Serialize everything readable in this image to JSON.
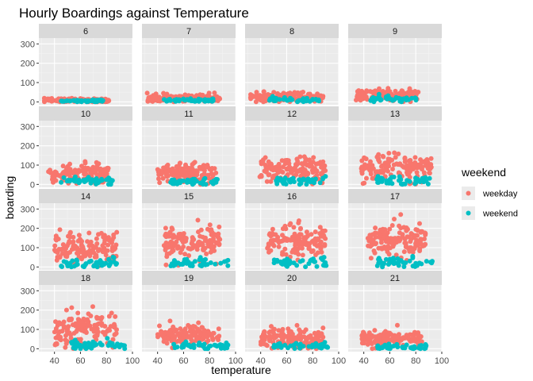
{
  "chart_data": {
    "type": "scatter",
    "title": "Hourly Boardings against Temperature",
    "xlabel": "temperature",
    "ylabel": "boarding",
    "xlim": [
      28,
      100
    ],
    "ylim": [
      -15,
      330
    ],
    "x_ticks": [
      40,
      60,
      80,
      100
    ],
    "x_tick_labels": [
      "40",
      "60",
      "80",
      "100"
    ],
    "y_ticks": [
      0,
      100,
      200,
      300
    ],
    "y_tick_labels": [
      "0",
      "100",
      "200",
      "300"
    ],
    "grid": true,
    "legend": {
      "title": "weekend",
      "position": "right",
      "entries": [
        {
          "label": "weekday",
          "color": "#F8766D"
        },
        {
          "label": "weekend",
          "color": "#00BFC4"
        }
      ]
    },
    "facet_by": "hour",
    "facets": [
      {
        "label": "6",
        "weekday": {
          "x_range": [
            32,
            82
          ],
          "y_center": 8,
          "y_spread": 5
        },
        "weekend": {
          "x_range": [
            45,
            78
          ],
          "y_center": 5,
          "y_spread": 3
        }
      },
      {
        "label": "7",
        "weekday": {
          "x_range": [
            32,
            88
          ],
          "y_center": 18,
          "y_spread": 10
        },
        "weekend": {
          "x_range": [
            45,
            85
          ],
          "y_center": 8,
          "y_spread": 5
        }
      },
      {
        "label": "8",
        "weekday": {
          "x_range": [
            32,
            88
          ],
          "y_center": 22,
          "y_spread": 13
        },
        "weekend": {
          "x_range": [
            45,
            85
          ],
          "y_center": 10,
          "y_spread": 6
        }
      },
      {
        "label": "9",
        "weekday": {
          "x_range": [
            34,
            82
          ],
          "y_center": 35,
          "y_spread": 14
        },
        "weekend": {
          "x_range": [
            45,
            82
          ],
          "y_center": 14,
          "y_spread": 8
        }
      },
      {
        "label": "10",
        "weekday": {
          "x_range": [
            35,
            82
          ],
          "y_center": 55,
          "y_spread": 25
        },
        "weekend": {
          "x_range": [
            45,
            85
          ],
          "y_center": 20,
          "y_spread": 10
        }
      },
      {
        "label": "11",
        "weekday": {
          "x_range": [
            40,
            85
          ],
          "y_center": 55,
          "y_spread": 25
        },
        "weekend": {
          "x_range": [
            50,
            88
          ],
          "y_center": 15,
          "y_spread": 10
        }
      },
      {
        "label": "12",
        "weekday": {
          "x_range": [
            38,
            90
          ],
          "y_center": 75,
          "y_spread": 30
        },
        "weekend": {
          "x_range": [
            50,
            90
          ],
          "y_center": 20,
          "y_spread": 10
        }
      },
      {
        "label": "13",
        "weekday": {
          "x_range": [
            38,
            92
          ],
          "y_center": 85,
          "y_spread": 35
        },
        "weekend": {
          "x_range": [
            50,
            92
          ],
          "y_center": 20,
          "y_spread": 12
        }
      },
      {
        "label": "14",
        "weekday": {
          "x_range": [
            40,
            88
          ],
          "y_center": 100,
          "y_spread": 40
        },
        "weekend": {
          "x_range": [
            45,
            90
          ],
          "y_center": 20,
          "y_spread": 12
        }
      },
      {
        "label": "15",
        "weekday": {
          "x_range": [
            45,
            88
          ],
          "y_center": 120,
          "y_spread": 45
        },
        "weekend": {
          "x_range": [
            50,
            95
          ],
          "y_center": 20,
          "y_spread": 12
        }
      },
      {
        "label": "16",
        "weekday": {
          "x_range": [
            45,
            90
          ],
          "y_center": 130,
          "y_spread": 45
        },
        "weekend": {
          "x_range": [
            50,
            92
          ],
          "y_center": 20,
          "y_spread": 12
        }
      },
      {
        "label": "17",
        "weekday": {
          "x_range": [
            42,
            88
          ],
          "y_center": 130,
          "y_spread": 45
        },
        "weekend": {
          "x_range": [
            50,
            95
          ],
          "y_center": 25,
          "y_spread": 12
        }
      },
      {
        "label": "18",
        "weekday": {
          "x_range": [
            40,
            88
          ],
          "y_center": 105,
          "y_spread": 45
        },
        "weekend": {
          "x_range": [
            50,
            95
          ],
          "y_center": 20,
          "y_spread": 12
        }
      },
      {
        "label": "19",
        "weekday": {
          "x_range": [
            40,
            88
          ],
          "y_center": 75,
          "y_spread": 25
        },
        "weekend": {
          "x_range": [
            50,
            95
          ],
          "y_center": 15,
          "y_spread": 10
        }
      },
      {
        "label": "20",
        "weekday": {
          "x_range": [
            40,
            88
          ],
          "y_center": 55,
          "y_spread": 25
        },
        "weekend": {
          "x_range": [
            50,
            92
          ],
          "y_center": 12,
          "y_spread": 8
        }
      },
      {
        "label": "21",
        "weekday": {
          "x_range": [
            38,
            85
          ],
          "y_center": 50,
          "y_spread": 20
        },
        "weekend": {
          "x_range": [
            50,
            88
          ],
          "y_center": 10,
          "y_spread": 7
        }
      }
    ]
  }
}
